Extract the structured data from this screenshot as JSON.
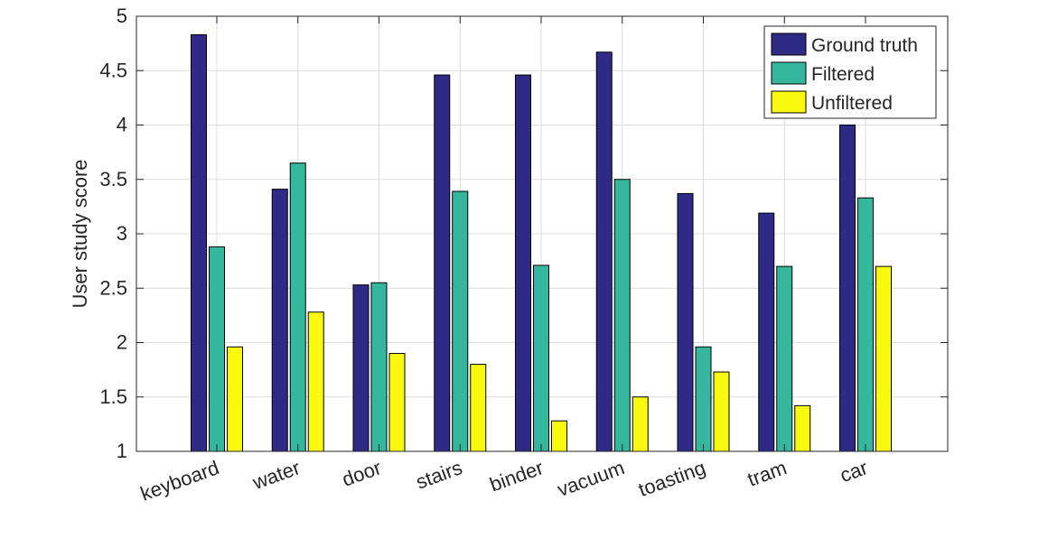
{
  "chart_data": {
    "type": "bar",
    "title": "",
    "xlabel": "",
    "ylabel": "User study score",
    "ylim": [
      1,
      5
    ],
    "yticks": [
      "1",
      "1.5",
      "2",
      "2.5",
      "3",
      "3.5",
      "4",
      "4.5",
      "5"
    ],
    "grid": true,
    "legend_position": "top-right",
    "categories": [
      "keyboard",
      "water",
      "door",
      "stairs",
      "binder",
      "vacuum",
      "toasting",
      "tram",
      "car"
    ],
    "series": [
      {
        "name": "Ground truth",
        "color": "#2e2a85",
        "values": [
          4.83,
          3.41,
          2.53,
          4.46,
          4.46,
          4.67,
          3.37,
          3.19,
          4.0
        ]
      },
      {
        "name": "Filtered",
        "color": "#35b79e",
        "values": [
          2.88,
          3.65,
          2.55,
          3.39,
          2.71,
          3.5,
          1.96,
          2.7,
          3.33
        ]
      },
      {
        "name": "Unfiltered",
        "color": "#f9f90f",
        "values": [
          1.96,
          2.28,
          1.9,
          1.8,
          1.28,
          1.5,
          1.73,
          1.42,
          2.7
        ]
      }
    ]
  }
}
